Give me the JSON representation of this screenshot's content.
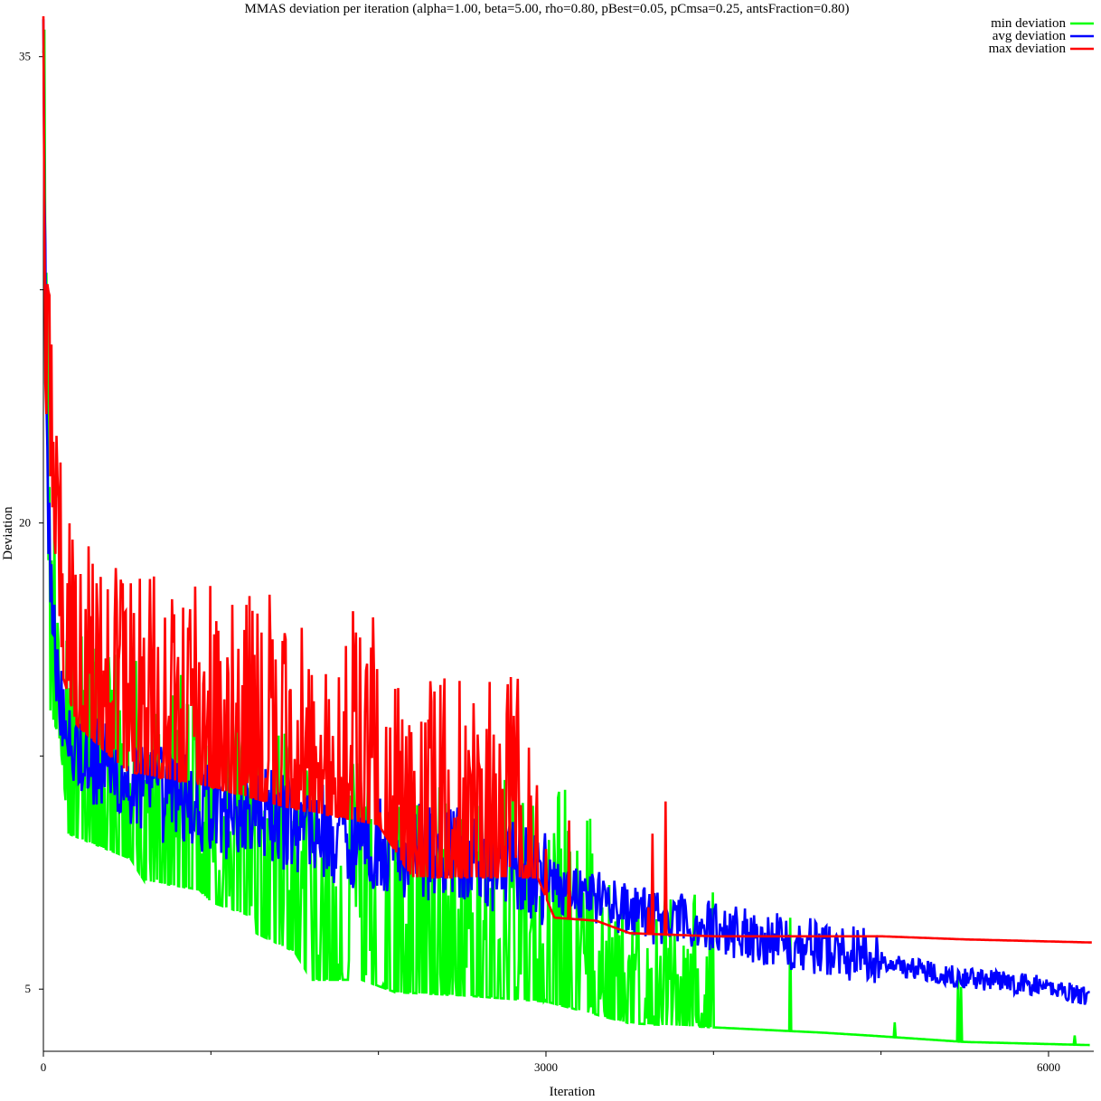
{
  "chart_data": {
    "type": "line",
    "title": "MMAS deviation per iteration (alpha=1.00, beta=5.00, rho=0.80, pBest=0.05, pCmsa=0.25, antsFraction=0.80)",
    "xlabel": "Iteration",
    "ylabel": "Deviation",
    "xlim": [
      0,
      6270
    ],
    "ylim": [
      3,
      36.3
    ],
    "x_ticks_labeled": [
      0,
      3000,
      6000
    ],
    "x_ticks_minor": [
      1000,
      2000,
      4000,
      5000
    ],
    "y_ticks_labeled": [
      5,
      20,
      35
    ],
    "y_ticks_minor": [
      12.5,
      27.5
    ],
    "grid": false,
    "legend_position": "top-right",
    "series": [
      {
        "name": "min deviation",
        "color": "#00ff00",
        "noise": 1,
        "trend": [
          [
            0,
            35
          ],
          [
            15,
            26
          ],
          [
            40,
            14
          ],
          [
            100,
            13
          ],
          [
            150,
            10
          ],
          [
            380,
            9.5
          ],
          [
            520,
            9.2
          ],
          [
            600,
            8.5
          ],
          [
            930,
            8.2
          ],
          [
            1000,
            7.8
          ],
          [
            1270,
            7.3
          ],
          [
            1270,
            6.8
          ],
          [
            1500,
            6.2
          ],
          [
            1600,
            5.3
          ],
          [
            1900,
            5.3
          ],
          [
            2100,
            4.9
          ],
          [
            2500,
            4.8
          ],
          [
            3000,
            4.6
          ],
          [
            3500,
            3.9
          ],
          [
            4650,
            3.6
          ],
          [
            4950,
            3.5
          ],
          [
            5500,
            3.3
          ],
          [
            6250,
            3.2
          ]
        ]
      },
      {
        "name": "avg deviation",
        "color": "#0000ff",
        "noise": 1,
        "trend": [
          [
            0,
            36
          ],
          [
            10,
            28
          ],
          [
            30,
            20
          ],
          [
            80,
            14.5
          ],
          [
            200,
            12.3
          ],
          [
            500,
            11.3
          ],
          [
            1000,
            10.5
          ],
          [
            1500,
            10
          ],
          [
            2000,
            9.3
          ],
          [
            2500,
            9
          ],
          [
            3000,
            8.3
          ],
          [
            3300,
            7.8
          ],
          [
            3500,
            7.3
          ],
          [
            3800,
            7
          ],
          [
            4000,
            6.8
          ],
          [
            4500,
            6.3
          ],
          [
            5000,
            5.8
          ],
          [
            5500,
            5.3
          ],
          [
            6000,
            5
          ],
          [
            6250,
            4.7
          ]
        ]
      },
      {
        "name": "max deviation",
        "color": "#ff0000",
        "noise": 1,
        "trend": [
          [
            0,
            36
          ],
          [
            12,
            24
          ],
          [
            60,
            20
          ],
          [
            120,
            15
          ],
          [
            200,
            13.5
          ],
          [
            500,
            12
          ],
          [
            1000,
            11.5
          ],
          [
            1500,
            10.8
          ],
          [
            2000,
            10.3
          ],
          [
            2200,
            8.6
          ],
          [
            2500,
            8.6
          ],
          [
            2950,
            8.6
          ],
          [
            3050,
            7.3
          ],
          [
            3300,
            7.2
          ],
          [
            3500,
            6.8
          ],
          [
            4000,
            6.7
          ],
          [
            4500,
            6.7
          ],
          [
            5000,
            6.7
          ],
          [
            5500,
            6.6
          ],
          [
            6260,
            6.5
          ]
        ]
      }
    ]
  }
}
